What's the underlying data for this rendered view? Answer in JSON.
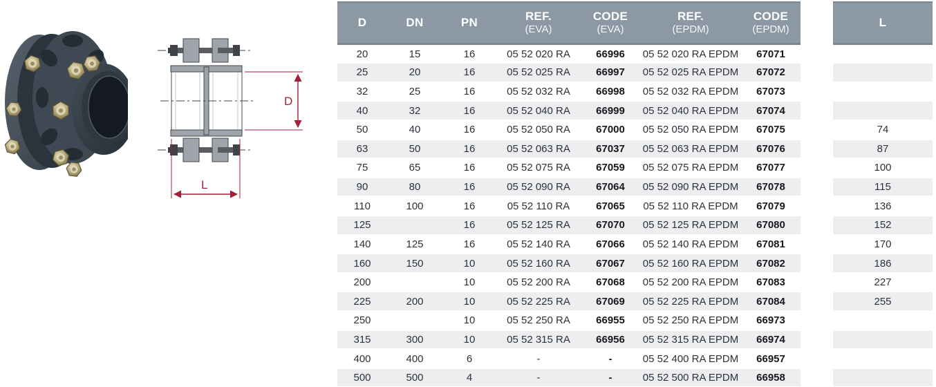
{
  "illustration": {
    "photo_name": "PVC flange coupling product photo",
    "drawing_name": "Flange coupling dimensional drawing"
  },
  "drawing": {
    "dim_d_label": "D",
    "dim_l_label": "L",
    "dimension_color": "#A32038"
  },
  "table": {
    "headers": [
      {
        "line1": "D",
        "line2": ""
      },
      {
        "line1": "DN",
        "line2": ""
      },
      {
        "line1": "PN",
        "line2": ""
      },
      {
        "line1": "REF.",
        "line2": "(EVA)"
      },
      {
        "line1": "CODE",
        "line2": "(EVA)"
      },
      {
        "line1": "REF.",
        "line2": "(EPDM)"
      },
      {
        "line1": "CODE",
        "line2": "(EPDM)"
      }
    ],
    "column_keys": [
      "d",
      "dn",
      "pn",
      "ref-eva",
      "code-eva",
      "ref-epdm",
      "code-epdm"
    ],
    "rows": [
      [
        "20",
        "15",
        "16",
        "05 52 020 RA",
        "66996",
        "05 52 020 RA EPDM",
        "67071"
      ],
      [
        "25",
        "20",
        "16",
        "05 52 025 RA",
        "66997",
        "05 52 025 RA EPDM",
        "67072"
      ],
      [
        "32",
        "25",
        "16",
        "05 52 032 RA",
        "66998",
        "05 52 032 RA EPDM",
        "67073"
      ],
      [
        "40",
        "32",
        "16",
        "05 52 040 RA",
        "66999",
        "05 52 040 RA EPDM",
        "67074"
      ],
      [
        "50",
        "40",
        "16",
        "05 52 050 RA",
        "67000",
        "05 52 050 RA EPDM",
        "67075"
      ],
      [
        "63",
        "50",
        "16",
        "05 52 063 RA",
        "67037",
        "05 52 063 RA EPDM",
        "67076"
      ],
      [
        "75",
        "65",
        "16",
        "05 52 075 RA",
        "67059",
        "05 52 075 RA EPDM",
        "67077"
      ],
      [
        "90",
        "80",
        "16",
        "05 52 090 RA",
        "67064",
        "05 52 090 RA EPDM",
        "67078"
      ],
      [
        "110",
        "100",
        "16",
        "05 52 110 RA",
        "67065",
        "05 52 110 RA EPDM",
        "67079"
      ],
      [
        "125",
        "",
        "16",
        "05 52 125 RA",
        "67070",
        "05 52 125 RA EPDM",
        "67080"
      ],
      [
        "140",
        "125",
        "16",
        "05 52 140 RA",
        "67066",
        "05 52 140 RA EPDM",
        "67081"
      ],
      [
        "160",
        "150",
        "10",
        "05 52 160 RA",
        "67067",
        "05 52 160 RA EPDM",
        "67082"
      ],
      [
        "200",
        "",
        "10",
        "05 52 200 RA",
        "67068",
        "05 52 200 RA EPDM",
        "67083"
      ],
      [
        "225",
        "200",
        "10",
        "05 52 225 RA",
        "67069",
        "05 52 225 RA EPDM",
        "67084"
      ],
      [
        "250",
        "",
        "10",
        "05 52 250 RA",
        "66955",
        "05 52 250 RA EPDM",
        "66973"
      ],
      [
        "315",
        "300",
        "10",
        "05 52 315 RA",
        "66956",
        "05 52 315 RA EPDM",
        "66974"
      ],
      [
        "400",
        "400",
        "6",
        "-",
        "-",
        "05 52 400 RA EPDM",
        "66957"
      ],
      [
        "500",
        "500",
        "4",
        "-",
        "-",
        "05 52 500 RA EPDM",
        "66958"
      ]
    ]
  },
  "l_table": {
    "header": "L",
    "values": [
      "",
      "",
      "",
      "",
      "74",
      "87",
      "100",
      "115",
      "136",
      "152",
      "170",
      "186",
      "227",
      "255",
      "",
      "",
      "",
      ""
    ]
  },
  "colors": {
    "header_bg": "#8C98A3",
    "header_border": "#79848F",
    "stripe": "#ECEEF0",
    "text": "#2E3238",
    "code_text": "#17191C",
    "dimension_red": "#A32038",
    "pvc_dark": "#3E4953",
    "brass": "#B5A878"
  }
}
